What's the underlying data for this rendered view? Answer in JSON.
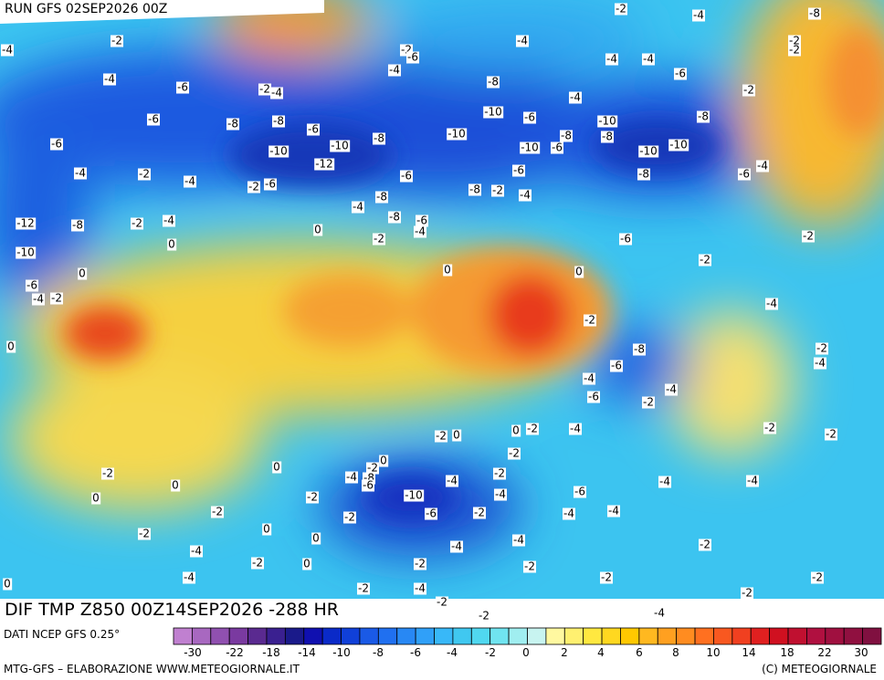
{
  "header": {
    "run": "RUN GFS 02SEP2026 00Z"
  },
  "map": {
    "contour_labels": [
      -2,
      -4,
      -8,
      -2,
      -4,
      -2,
      -6,
      -2,
      -2,
      -4,
      -4,
      -4,
      -4,
      -6,
      -4,
      -6,
      -2,
      -4,
      -8,
      -2,
      -4,
      -6,
      -8,
      -8,
      -6,
      -10,
      -6,
      -10,
      -8,
      -6,
      -10,
      -10,
      -8,
      -10,
      -10,
      -6,
      -8,
      -8,
      -10,
      -10,
      -12,
      -4,
      -2,
      -4,
      -2,
      -6,
      -6,
      -6,
      -8,
      -2,
      -4,
      -8,
      -6,
      -4,
      -8,
      -4,
      -8,
      -6,
      -4,
      -2,
      -4,
      -12,
      -8,
      0,
      -2,
      -6,
      -2,
      0,
      -10,
      -2,
      0,
      0,
      0,
      -6,
      -4,
      -2,
      -4,
      -2,
      0,
      -8,
      -2,
      -6,
      -4,
      -4,
      -4,
      -6,
      -2,
      -2,
      0,
      -2,
      -4,
      -2,
      -2,
      0,
      -2,
      0,
      -2,
      -2,
      0,
      -4,
      -8,
      -6,
      -4,
      -2,
      -4,
      -4,
      0,
      0,
      -2,
      -10,
      -4,
      -6,
      -2,
      -2,
      -6,
      -2,
      -4,
      -4,
      -2,
      0,
      -4,
      -4,
      0,
      -4,
      -2,
      -2,
      0,
      -2,
      -2,
      -4,
      0,
      -2,
      -4,
      -2,
      -2,
      -2,
      -2,
      -2,
      -4
    ]
  },
  "footer": {
    "title": "DIF TMP Z850 00Z14SEP2026 -288 HR",
    "source": "DATI NCEP GFS 0.25°",
    "credits": "MTG-GFS – ELABORAZIONE WWW.METEOGIORNALE.IT",
    "copyright": "(C) METEOGIORNALE"
  },
  "colorbar": {
    "colors": [
      "#c080d0",
      "#a868c0",
      "#9050b0",
      "#7a3aa0",
      "#5a2a90",
      "#3a2090",
      "#1a1a8a",
      "#1010b0",
      "#0a2ac8",
      "#1040d8",
      "#1a5ae6",
      "#2070f0",
      "#2888f4",
      "#30a0f8",
      "#38b8f8",
      "#40c8f0",
      "#50d8f0",
      "#70e4f0",
      "#a0eef0",
      "#c8f4f0",
      "#fff8a0",
      "#fff070",
      "#ffe840",
      "#ffd820",
      "#ffc800",
      "#ffb820",
      "#ffa020",
      "#ff8c20",
      "#ff7020",
      "#f85820",
      "#f04020",
      "#e02020",
      "#d01020",
      "#c01030",
      "#b01040",
      "#a01040",
      "#901040",
      "#801040"
    ],
    "labels": [
      -30,
      -22,
      -18,
      -14,
      -10,
      -8,
      -6,
      -4,
      -2,
      0,
      2,
      4,
      6,
      8,
      10,
      14,
      18,
      22,
      30
    ]
  }
}
